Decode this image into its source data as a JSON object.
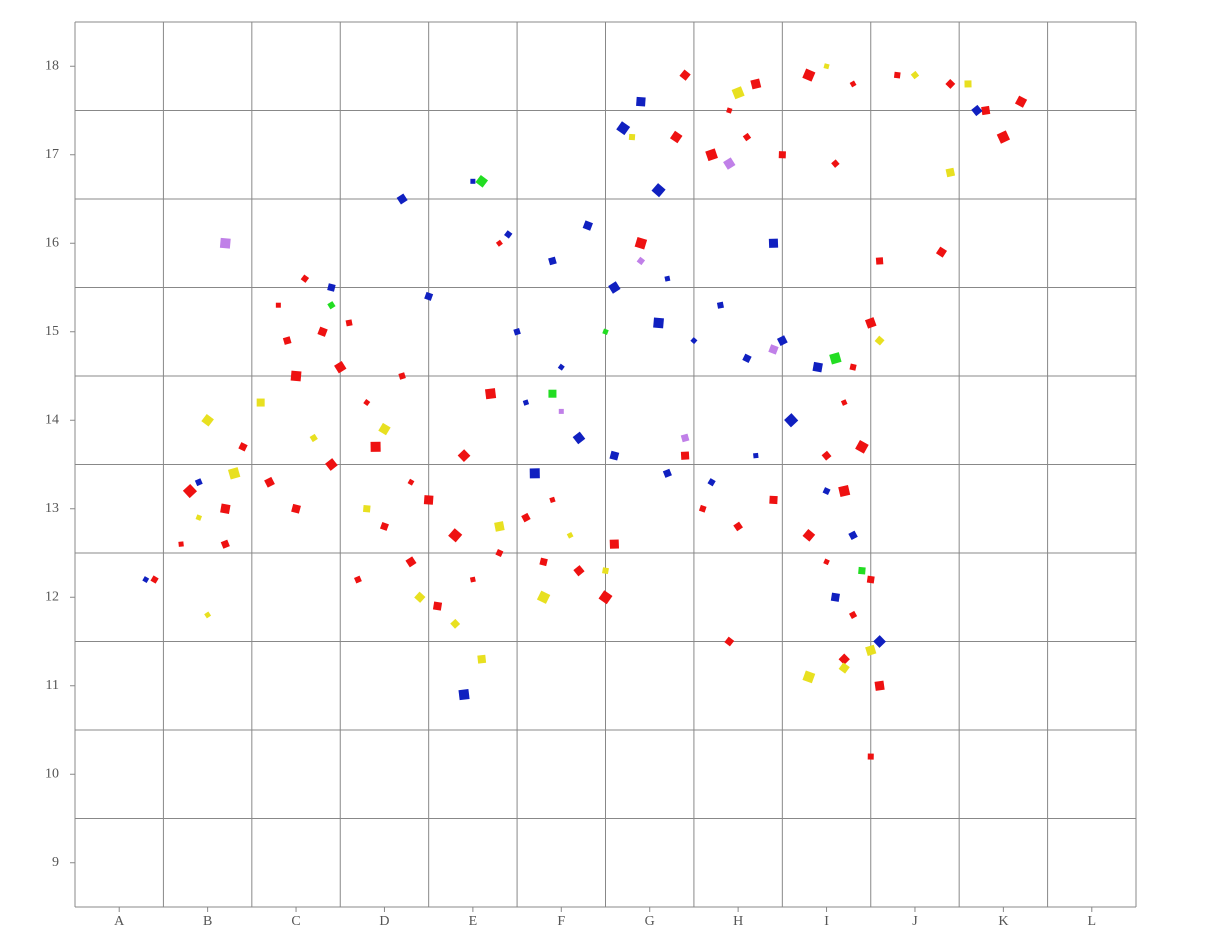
{
  "chart_data": {
    "type": "scatter",
    "xlim": [
      0.5,
      12.5
    ],
    "ylim": [
      8.5,
      18.5
    ],
    "xticks": [
      {
        "value": 1,
        "label": "A"
      },
      {
        "value": 2,
        "label": "B"
      },
      {
        "value": 3,
        "label": "C"
      },
      {
        "value": 4,
        "label": "D"
      },
      {
        "value": 5,
        "label": "E"
      },
      {
        "value": 6,
        "label": "F"
      },
      {
        "value": 7,
        "label": "G"
      },
      {
        "value": 8,
        "label": "H"
      },
      {
        "value": 9,
        "label": "I"
      },
      {
        "value": 10,
        "label": "J"
      },
      {
        "value": 11,
        "label": "K"
      },
      {
        "value": 12,
        "label": "L"
      }
    ],
    "yticks": [
      9,
      10,
      11,
      12,
      13,
      14,
      15,
      16,
      17,
      18
    ],
    "xgrid": [
      1.5,
      2.5,
      3.5,
      4.5,
      5.5,
      6.5,
      7.5,
      8.5,
      9.5,
      10.5,
      11.5,
      12.5
    ],
    "ygrid": [
      9.5,
      10.5,
      11.5,
      12.5,
      13.5,
      14.5,
      15.5,
      16.5,
      17.5,
      18.5
    ],
    "grid": true,
    "series": [
      {
        "color": "#ee1111",
        "x": [
          2.8,
          3.1,
          2.9,
          3.3,
          3.5,
          3.0,
          2.6,
          3.6,
          2.4,
          2.7,
          2.2,
          1.8,
          1.7,
          1.4,
          2.2,
          3.0,
          3.4,
          3.9,
          3.8,
          4.2,
          4.0,
          4.3,
          4.5,
          4.8,
          5.0,
          5.3,
          5.6,
          4.6,
          4.9,
          5.2,
          4.3,
          3.7,
          5.8,
          6.2,
          6.6,
          6.5,
          5.9,
          7.6,
          8.0,
          8.4,
          8.8,
          9.2,
          9.0,
          9.3,
          9.5,
          9.2,
          9.6,
          9.4,
          9.2,
          9.3,
          9.0,
          7.4,
          7.3,
          7.7,
          7.9,
          8.1,
          8.5,
          7.4,
          8.2,
          8.8,
          9.3,
          9.8,
          10.4,
          10.8,
          11.2,
          11.0,
          10.4,
          9.1,
          9.6,
          10.3,
          9.5,
          6.9,
          5.3,
          9.5,
          7.9
        ],
        "y": [
          15.3,
          15.6,
          14.9,
          15.0,
          14.6,
          14.5,
          14.2,
          15.1,
          13.7,
          13.3,
          13.0,
          13.2,
          12.6,
          12.2,
          12.6,
          13.0,
          13.5,
          13.7,
          14.2,
          14.5,
          12.8,
          12.4,
          13.1,
          12.7,
          12.2,
          12.5,
          12.9,
          11.9,
          13.6,
          14.3,
          13.3,
          12.2,
          12.4,
          12.3,
          12.6,
          12.0,
          13.1,
          13.0,
          12.8,
          13.1,
          12.7,
          13.2,
          12.4,
          11.8,
          12.2,
          11.3,
          11.0,
          13.7,
          14.2,
          14.6,
          13.6,
          13.6,
          17.2,
          17.0,
          17.5,
          17.2,
          17.0,
          17.9,
          17.8,
          17.9,
          17.8,
          17.9,
          17.8,
          17.5,
          17.6,
          17.2,
          16.8,
          16.9,
          15.8,
          15.9,
          15.1,
          16.0,
          16.0,
          10.2,
          11.5
        ]
      },
      {
        "color": "#e8e020",
        "x": [
          2.6,
          2.0,
          2.3,
          1.9,
          3.2,
          3.8,
          4.4,
          5.3,
          5.8,
          6.1,
          6.5,
          4.8,
          5.1,
          4.0,
          8.0,
          9.0,
          10.0,
          10.6,
          9.2,
          9.5,
          8.8,
          2.0,
          6.8,
          9.6,
          10.4
        ],
        "y": [
          14.2,
          14.0,
          13.4,
          12.9,
          13.8,
          13.0,
          12.0,
          12.8,
          12.0,
          12.7,
          12.3,
          11.7,
          11.3,
          13.9,
          17.7,
          18.0,
          17.9,
          17.8,
          11.2,
          11.4,
          11.1,
          11.8,
          17.2,
          14.9,
          16.8
        ]
      },
      {
        "color": "#1020c0",
        "x": [
          5.0,
          5.4,
          5.9,
          6.3,
          6.6,
          7.1,
          7.5,
          7.8,
          8.1,
          8.5,
          8.9,
          8.6,
          8.2,
          7.7,
          7.2,
          6.6,
          6.2,
          5.7,
          6.0,
          5.5,
          4.5,
          4.2,
          6.9,
          7.1,
          7.2,
          9.0,
          9.3,
          9.1,
          9.6,
          4.9,
          1.3,
          1.9,
          3.4,
          10.7,
          8.4,
          6.7,
          5.6
        ],
        "y": [
          16.7,
          16.1,
          15.8,
          16.2,
          15.5,
          15.1,
          14.9,
          15.3,
          14.7,
          14.9,
          14.6,
          14.0,
          13.6,
          13.3,
          13.4,
          13.6,
          13.8,
          13.4,
          14.6,
          15.0,
          15.4,
          16.5,
          17.6,
          16.6,
          15.6,
          13.2,
          12.7,
          12.0,
          11.5,
          10.9,
          12.2,
          13.3,
          15.5,
          17.5,
          16.0,
          17.3,
          14.2
        ]
      },
      {
        "color": "#22dd22",
        "x": [
          5.9,
          5.1,
          9.1,
          6.5,
          3.4,
          9.4
        ],
        "y": [
          14.3,
          16.7,
          14.7,
          15.0,
          15.3,
          12.3
        ]
      },
      {
        "color": "#c080e8",
        "x": [
          6.0,
          6.9,
          7.4,
          8.4,
          7.9,
          2.2
        ],
        "y": [
          14.1,
          15.8,
          13.8,
          14.8,
          16.9,
          16.0
        ]
      }
    ]
  }
}
